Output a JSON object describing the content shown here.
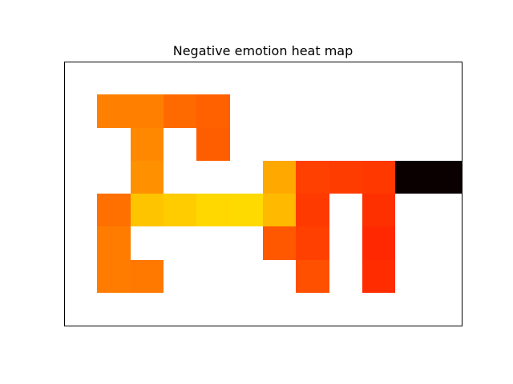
{
  "chart_data": {
    "type": "heatmap",
    "title": "Negative emotion heat map",
    "xlabel": "",
    "ylabel": "",
    "grid": false,
    "axes_ticks": false,
    "n_cols": 12,
    "n_rows": 8,
    "background_color": "#ffffff",
    "cells": [
      {
        "row": 1,
        "col": 1,
        "color": "#ff8000"
      },
      {
        "row": 1,
        "col": 2,
        "color": "#ff8000"
      },
      {
        "row": 1,
        "col": 3,
        "color": "#ff6a00"
      },
      {
        "row": 1,
        "col": 4,
        "color": "#ff6000"
      },
      {
        "row": 2,
        "col": 2,
        "color": "#ff8800"
      },
      {
        "row": 2,
        "col": 4,
        "color": "#ff5e00"
      },
      {
        "row": 3,
        "col": 2,
        "color": "#ff9000"
      },
      {
        "row": 3,
        "col": 6,
        "color": "#ffa800"
      },
      {
        "row": 3,
        "col": 7,
        "color": "#ff4000"
      },
      {
        "row": 3,
        "col": 8,
        "color": "#ff3c00"
      },
      {
        "row": 3,
        "col": 9,
        "color": "#ff3800"
      },
      {
        "row": 3,
        "col": 10,
        "color": "#0a0000"
      },
      {
        "row": 3,
        "col": 11,
        "color": "#0a0000"
      },
      {
        "row": 4,
        "col": 1,
        "color": "#ff7000"
      },
      {
        "row": 4,
        "col": 2,
        "color": "#ffc400"
      },
      {
        "row": 4,
        "col": 3,
        "color": "#ffcc00"
      },
      {
        "row": 4,
        "col": 4,
        "color": "#ffd800"
      },
      {
        "row": 4,
        "col": 5,
        "color": "#ffda00"
      },
      {
        "row": 4,
        "col": 6,
        "color": "#ffba00"
      },
      {
        "row": 4,
        "col": 7,
        "color": "#ff3a00"
      },
      {
        "row": 4,
        "col": 9,
        "color": "#ff3000"
      },
      {
        "row": 5,
        "col": 1,
        "color": "#ff7c00"
      },
      {
        "row": 5,
        "col": 6,
        "color": "#ff5800"
      },
      {
        "row": 5,
        "col": 7,
        "color": "#ff4000"
      },
      {
        "row": 5,
        "col": 9,
        "color": "#ff2800"
      },
      {
        "row": 6,
        "col": 1,
        "color": "#ff7c00"
      },
      {
        "row": 6,
        "col": 2,
        "color": "#ff7800"
      },
      {
        "row": 6,
        "col": 7,
        "color": "#ff5000"
      },
      {
        "row": 6,
        "col": 9,
        "color": "#ff2c00"
      }
    ]
  }
}
